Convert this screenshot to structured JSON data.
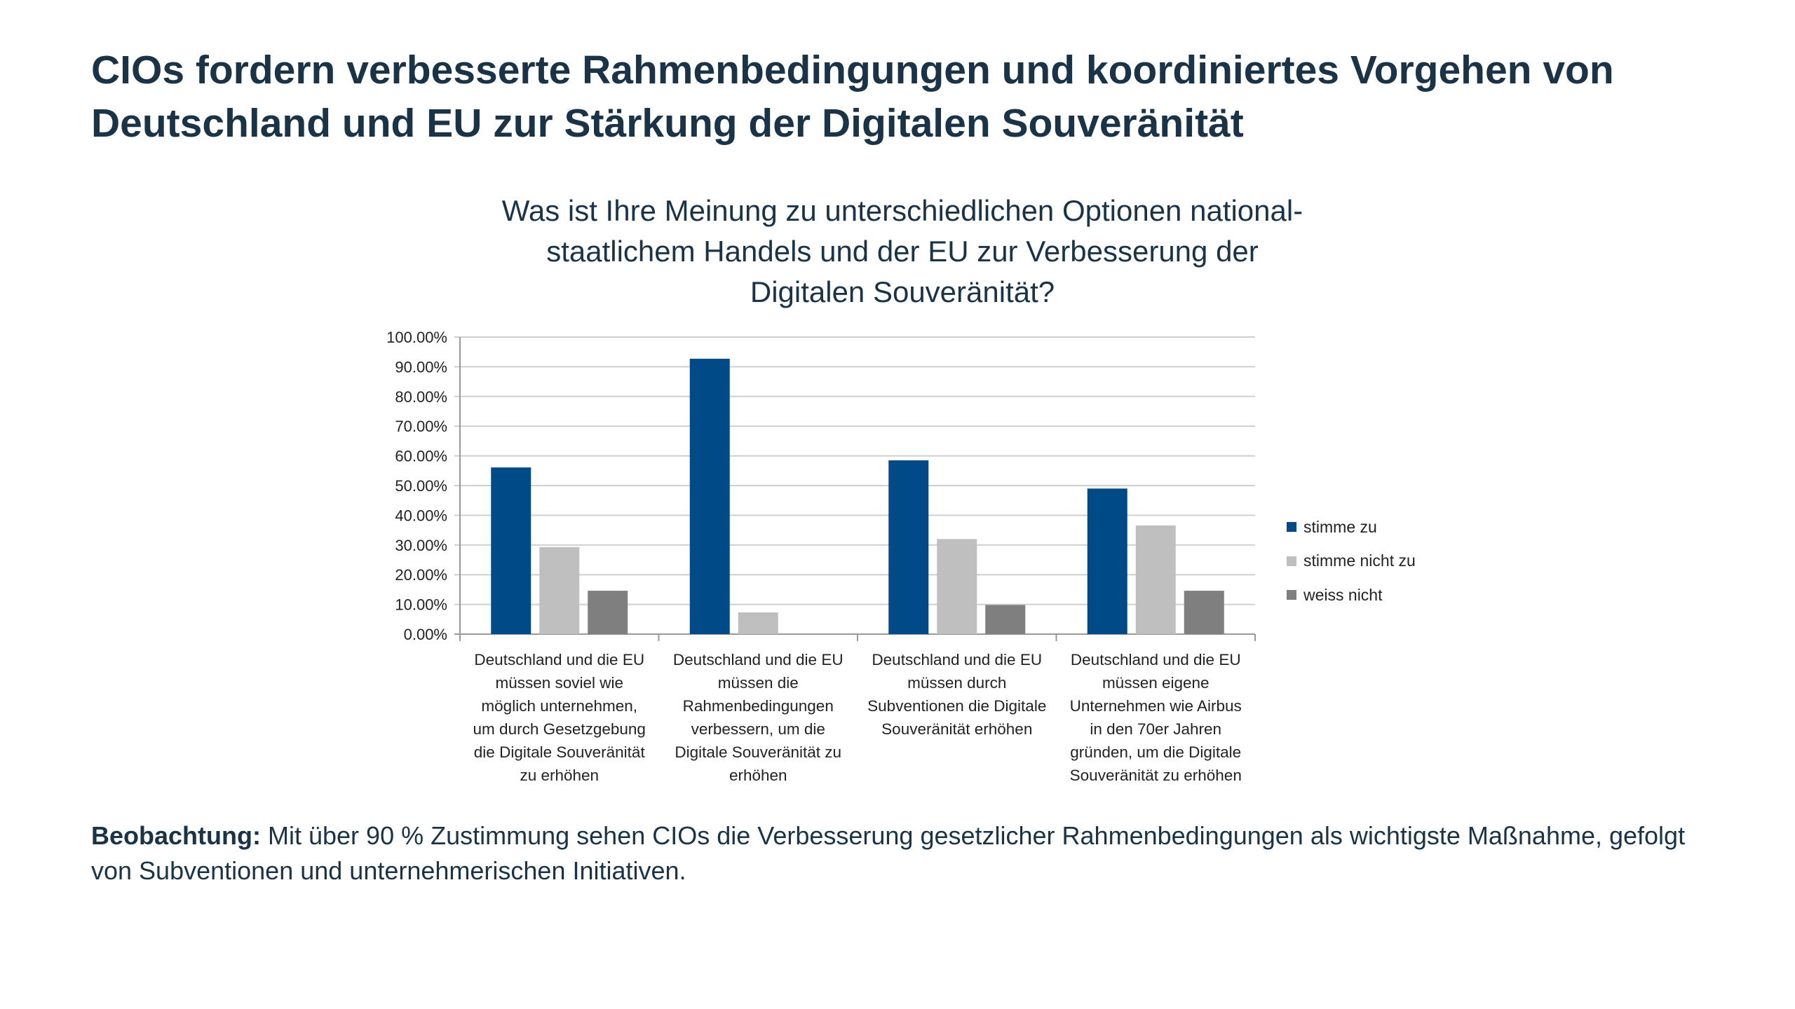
{
  "title": "CIOs fordern verbesserte Rahmenbedingungen und koordiniertes Vorgehen von Deutschland und EU zur Stärkung der Digitalen Souveränität",
  "observation": {
    "label": "Beobachtung:",
    "text": "Mit über 90 % Zustimmung sehen CIOs die Verbesserung gesetzlicher Rahmenbedingungen als wichtigste Maßnahme, gefolgt von Subventionen und unternehmerischen Initiativen."
  },
  "chart_data": {
    "type": "bar",
    "title": "Was ist Ihre Meinung zu unterschiedlichen Optionen national-\nstaatlichem Handels und der EU zur Verbesserung der\nDigitalen Souveränität?",
    "xlabel": "",
    "ylabel": "",
    "ylim": [
      0,
      100
    ],
    "yticks": [
      "0.00%",
      "10.00%",
      "20.00%",
      "30.00%",
      "40.00%",
      "50.00%",
      "60.00%",
      "70.00%",
      "80.00%",
      "90.00%",
      "100.00%"
    ],
    "grid": true,
    "legend_position": "right",
    "categories": [
      "Deutschland und die EU\nmüssen soviel wie\nmöglich unternehmen,\num durch Gesetzgebung\ndie Digitale Souveränität\nzu erhöhen",
      "Deutschland und die EU\nmüssen die\nRahmenbedingungen\nverbessern, um die\nDigitale Souveränität zu\nerhöhen",
      "Deutschland und die EU\nmüssen durch\nSubventionen die Digitale\nSouveränität erhöhen",
      "Deutschland und die EU\nmüssen eigene\nUnternehmen wie Airbus\nin den 70er Jahren\ngründen, um die Digitale\nSouveränität zu erhöhen"
    ],
    "series": [
      {
        "name": "stimme zu",
        "color": "#004b87",
        "values": [
          56.1,
          92.7,
          58.5,
          49.0
        ]
      },
      {
        "name": "stimme nicht zu",
        "color": "#bfbfbf",
        "values": [
          29.3,
          7.3,
          32.0,
          36.6
        ]
      },
      {
        "name": "weiss nicht",
        "color": "#7f7f7f",
        "values": [
          14.6,
          0,
          9.8,
          14.6
        ]
      }
    ]
  }
}
